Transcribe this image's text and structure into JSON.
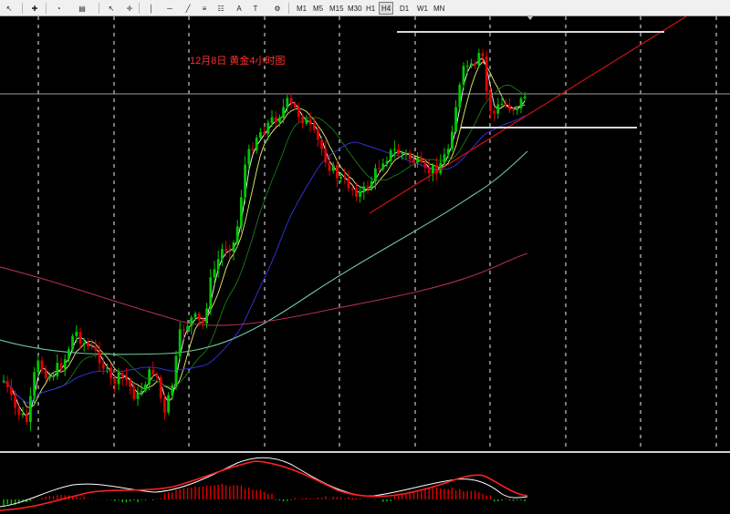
{
  "toolbar": {
    "tools": [
      {
        "name": "new-chart-icon",
        "glyph": "↖"
      },
      {
        "name": "add-indicator-icon",
        "glyph": "✚"
      },
      {
        "name": "clock-icon",
        "glyph": "◔"
      },
      {
        "name": "templates-icon",
        "glyph": "▤"
      },
      {
        "name": "cursor-icon",
        "glyph": "↖"
      },
      {
        "name": "crosshair-icon",
        "glyph": "✛"
      },
      {
        "name": "vertical-line-icon",
        "glyph": "│"
      },
      {
        "name": "horizontal-line-icon",
        "glyph": "─"
      },
      {
        "name": "trendline-icon",
        "glyph": "╱"
      },
      {
        "name": "channel-icon",
        "glyph": "≡"
      },
      {
        "name": "fibonacci-icon",
        "glyph": "☷"
      },
      {
        "name": "text-icon",
        "glyph": "A"
      },
      {
        "name": "label-icon",
        "glyph": "T"
      },
      {
        "name": "shapes-icon",
        "glyph": "⚙"
      }
    ],
    "timeframes": [
      "M1",
      "M5",
      "M15",
      "M30",
      "H1",
      "H4",
      "D1",
      "W1",
      "MN"
    ],
    "active_timeframe": "H4"
  },
  "chart_title": "12月8日 黄金4小时图",
  "colors": {
    "background": "#000000",
    "grid": "#c8c8c8",
    "bull_candle": "#00c800",
    "bear_candle": "#e00000",
    "trendline": "#d01010",
    "ma_fast": "#ffffff",
    "ma_5": "#f0f070",
    "ma_10": "#1a7a1a",
    "ma_20": "#3030d0",
    "ma_60": "#70c8a0",
    "ma_120": "#b03050",
    "macd_line": "#ffffff",
    "signal_line": "#ff2020",
    "title": "#ff3030"
  }
}
